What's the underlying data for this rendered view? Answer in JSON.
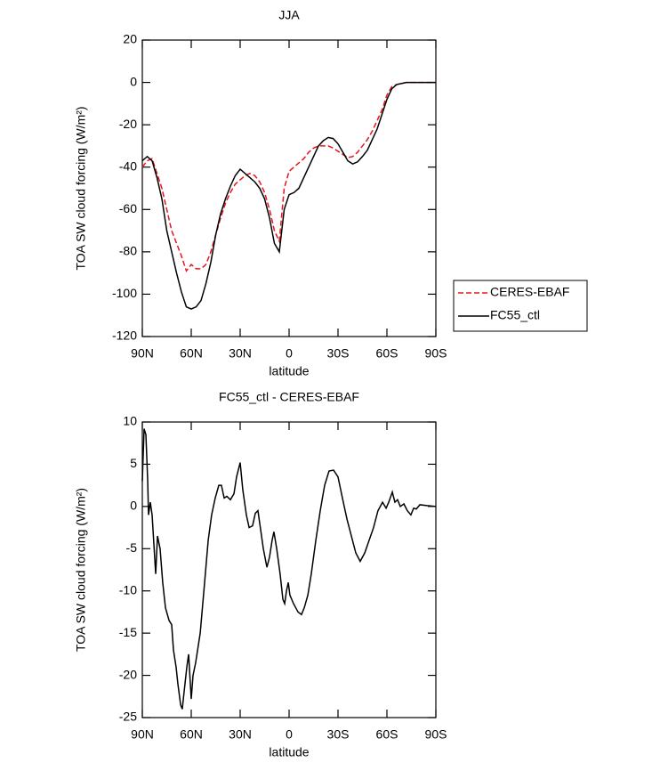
{
  "chart_data": [
    {
      "type": "line",
      "title": "JJA",
      "xlabel": "latitude",
      "ylabel": "TOA SW cloud forcing (W/m²)",
      "xlim": [
        90,
        -90
      ],
      "xticks": [
        {
          "value": 90,
          "label": "90N"
        },
        {
          "value": 60,
          "label": "60N"
        },
        {
          "value": 30,
          "label": "30N"
        },
        0,
        {
          "value": -30,
          "label": "30S"
        },
        {
          "value": -60,
          "label": "60S"
        },
        {
          "value": -90,
          "label": "90S"
        }
      ],
      "ylim": [
        -120,
        20
      ],
      "yticks": [
        20,
        0,
        -20,
        -40,
        -60,
        -80,
        -100,
        -120
      ],
      "legend": "right",
      "x": [
        90,
        87,
        84,
        81,
        78,
        75,
        72,
        69,
        66,
        63,
        60,
        57,
        54,
        51,
        48,
        45,
        42,
        39,
        36,
        33,
        30,
        27,
        24,
        21,
        18,
        15,
        12,
        9,
        6,
        3,
        0,
        -3,
        -6,
        -9,
        -12,
        -15,
        -18,
        -21,
        -24,
        -27,
        -30,
        -33,
        -36,
        -39,
        -42,
        -45,
        -48,
        -51,
        -54,
        -57,
        -60,
        -63,
        -66,
        -69,
        -72,
        -75,
        -78,
        -81,
        -84,
        -87,
        -90
      ],
      "series": [
        {
          "name": "CERES-EBAF",
          "color": "#e8141c",
          "linestyle": "dashed",
          "values": [
            -40,
            -37,
            -36,
            -43,
            -50,
            -60,
            -70,
            -76,
            -82,
            -89,
            -86,
            -88,
            -88,
            -86,
            -80,
            -72,
            -64,
            -57,
            -52,
            -48,
            -46,
            -44,
            -43,
            -44,
            -47,
            -52,
            -60,
            -70,
            -75,
            -50,
            -42,
            -40,
            -38,
            -36,
            -33,
            -31,
            -30,
            -30,
            -30,
            -31,
            -32.5,
            -34,
            -35.5,
            -35,
            -33,
            -30,
            -27,
            -23,
            -18,
            -13,
            -6,
            -2,
            -1,
            -0.5,
            0,
            0,
            0,
            0,
            0,
            0,
            0
          ]
        },
        {
          "name": "FC55_ctl",
          "color": "#000000",
          "linestyle": "solid",
          "values": [
            -37,
            -35,
            -37,
            -45,
            -55,
            -70,
            -80,
            -90,
            -99,
            -106,
            -107,
            -106,
            -103,
            -95,
            -85,
            -72,
            -62,
            -55,
            -49,
            -44,
            -41,
            -43,
            -45,
            -47,
            -50,
            -55,
            -64,
            -76,
            -80,
            -60,
            -53,
            -52,
            -50,
            -45,
            -40,
            -35,
            -30,
            -27.5,
            -26,
            -26.5,
            -29,
            -33,
            -37,
            -38.5,
            -37.5,
            -35,
            -32,
            -27,
            -22,
            -15,
            -8,
            -3,
            -1,
            -0.5,
            0,
            0,
            0,
            0,
            0,
            0,
            0
          ]
        }
      ]
    },
    {
      "type": "line",
      "title": "FC55_ctl - CERES-EBAF",
      "xlabel": "latitude",
      "ylabel": "TOA SW cloud forcing (W/m²)",
      "xlim": [
        90,
        -90
      ],
      "xticks": [
        {
          "value": 90,
          "label": "90N"
        },
        {
          "value": 60,
          "label": "60N"
        },
        {
          "value": 30,
          "label": "30N"
        },
        0,
        {
          "value": -30,
          "label": "30S"
        },
        {
          "value": -60,
          "label": "60S"
        },
        {
          "value": -90,
          "label": "90S"
        }
      ],
      "ylim": [
        -25,
        10
      ],
      "yticks": [
        10,
        5,
        0,
        -5,
        -10,
        -15,
        -20,
        -25
      ],
      "x": [
        90,
        88.9,
        87.8,
        86.7,
        86.2,
        85.1,
        84.0,
        81.8,
        80.7,
        79.1,
        77.5,
        75.8,
        73.6,
        72.0,
        70.9,
        69.3,
        68.2,
        66.5,
        65.5,
        64.4,
        62.7,
        61.6,
        60.0,
        58.9,
        57.3,
        54.5,
        51.8,
        49.6,
        47.5,
        45.3,
        43.1,
        41.5,
        39.8,
        38.2,
        36.0,
        33.8,
        32.2,
        30.0,
        28.4,
        26.2,
        24.5,
        22.4,
        20.7,
        19.1,
        18.0,
        15.8,
        13.6,
        12.0,
        10.4,
        9.3,
        7.6,
        5.5,
        3.8,
        2.7,
        1.6,
        0.5,
        -0.5,
        -2.7,
        -5.5,
        -7.6,
        -9.3,
        -11.5,
        -13.6,
        -16.4,
        -19.1,
        -21.8,
        -24.5,
        -27.3,
        -30.0,
        -32.7,
        -35.5,
        -38.2,
        -40.9,
        -43.6,
        -46.4,
        -49.1,
        -51.8,
        -54.5,
        -57.3,
        -59.5,
        -61.1,
        -63.3,
        -64.9,
        -66.5,
        -68.2,
        -70.4,
        -72.5,
        -74.7,
        -76.4,
        -78.0,
        -80.2,
        -84.5,
        -90
      ],
      "series": [
        {
          "name": "FC55_ctl - CERES-EBAF",
          "color": "#000000",
          "linestyle": "solid",
          "values": [
            3,
            9.2,
            8.5,
            3,
            -1,
            0.5,
            -1,
            -8,
            -3.5,
            -5,
            -9,
            -12,
            -13.5,
            -14,
            -17,
            -19,
            -21,
            -23.5,
            -24,
            -22,
            -19,
            -17.5,
            -22.8,
            -20,
            -18.5,
            -15,
            -9,
            -4,
            -1,
            1,
            2.5,
            2.5,
            1,
            1.2,
            0.8,
            1.5,
            3.5,
            5.2,
            2,
            -1,
            -2.5,
            -2.3,
            -0.8,
            -0.5,
            -2,
            -5,
            -7.2,
            -6,
            -4,
            -3,
            -5,
            -8,
            -11,
            -11.5,
            -10,
            -9,
            -10.5,
            -11.5,
            -12.5,
            -12.8,
            -12,
            -10.5,
            -8,
            -4,
            -0.5,
            2.5,
            4.2,
            4.3,
            3.5,
            1,
            -1.5,
            -3.5,
            -5.5,
            -6.5,
            -5.5,
            -4,
            -2.5,
            -0.5,
            0.5,
            -0.2,
            0.5,
            1.7,
            0.5,
            0.8,
            0,
            0.3,
            -0.5,
            -1,
            -0.2,
            -0.3,
            0.2,
            0.1,
            0
          ]
        }
      ]
    }
  ]
}
